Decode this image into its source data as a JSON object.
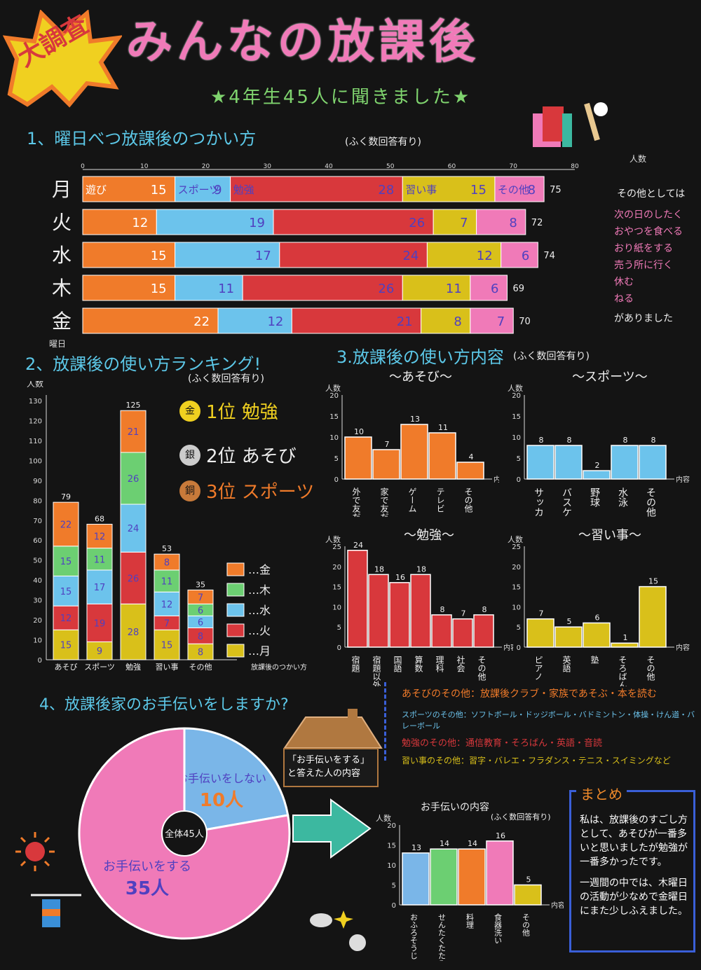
{
  "header": {
    "badge": "大調査",
    "title": "みんなの放課後",
    "subtitle": "★4年生45人に聞きました★"
  },
  "section1": {
    "title": "1、曜日べつ放課後のつかい方",
    "note": "(ふく数回答有り)",
    "unit": "人数",
    "axis_label": "曜日",
    "other_notes_title": "その他としては",
    "other_notes": [
      "次の日のしたく",
      "おやつを食べる",
      "おり紙をする",
      "売う所に行く",
      "休む",
      "ねる"
    ],
    "other_notes_end": "がありました"
  },
  "section2": {
    "title": "2、放課後の使い方ランキング!",
    "note": "(ふく数回答有り)",
    "ranks": [
      "1位 勉強",
      "2位 あそび",
      "3位 スポーツ"
    ],
    "medals": [
      "金",
      "銀",
      "銅"
    ]
  },
  "section3": {
    "title": "3.放課後の使い方内容",
    "note": "(ふく数回答有り)"
  },
  "section4": {
    "title": "4、放課後家のお手伝いをしますか?",
    "house_caption": "「お手伝いをする」と答えた人の内容",
    "center": "全体45人"
  },
  "others_box": {
    "asobi": "あそびのその他：放課後クラブ・家族であそぶ・本を読む",
    "sports": "スポーツのその他：ソフトボール・ドッジボール・バドミントン・体操・けん道・バレーボール",
    "benkyo": "勉強のその他：通信教育・そろばん・英語・音読",
    "naraigoto": "習い事のその他：習字・バレエ・フラダンス・テニス・スイミングなど"
  },
  "summary": {
    "title": "まとめ",
    "text1": "私は、放課後のすごし方として、あそびが一番多いと思いましたが勉強が一番多かったです。",
    "text2": "一週間の中では、木曜日の活動が少なめで金曜日にまた少しふえました。"
  },
  "colors": {
    "asobi": "#f07b2a",
    "sports": "#6cc3ec",
    "benkyo": "#d8383c",
    "naraigoto": "#d9c01a",
    "sonota": "#f07ab8",
    "green": "#6ccf72",
    "pink": "#f07ab8",
    "blue": "#7ab6e8",
    "teal": "#3cb8a0"
  },
  "chart_data": [
    {
      "type": "bar",
      "orientation": "horizontal-stacked",
      "title": "曜日べつ放課後のつかい方",
      "ylabel": "人数",
      "categories": [
        "月",
        "火",
        "水",
        "木",
        "金"
      ],
      "xlim": [
        0,
        80
      ],
      "xticks": [
        0,
        10,
        20,
        30,
        40,
        50,
        60,
        70,
        80
      ],
      "series": [
        {
          "name": "遊び",
          "values": [
            15,
            12,
            15,
            15,
            22
          ]
        },
        {
          "name": "スポーツ",
          "values": [
            9,
            19,
            17,
            11,
            12
          ]
        },
        {
          "name": "勉強",
          "values": [
            28,
            26,
            24,
            26,
            21
          ]
        },
        {
          "name": "習い事",
          "values": [
            15,
            7,
            12,
            11,
            8
          ]
        },
        {
          "name": "その他",
          "values": [
            8,
            8,
            6,
            6,
            7
          ]
        }
      ],
      "totals": [
        75,
        72,
        74,
        69,
        70
      ]
    },
    {
      "type": "bar",
      "orientation": "vertical-stacked",
      "title": "放課後の使い方ランキング",
      "ylabel": "人数",
      "xlabel": "放課後のつかい方",
      "categories": [
        "あそび",
        "スポーツ",
        "勉強",
        "習い事",
        "その他"
      ],
      "ylim": [
        0,
        130
      ],
      "yticks": [
        10,
        20,
        30,
        40,
        50,
        60,
        70,
        80,
        90,
        100,
        110,
        120,
        130
      ],
      "series": [
        {
          "name": "月",
          "values": [
            15,
            9,
            28,
            15,
            8
          ]
        },
        {
          "name": "火",
          "values": [
            12,
            19,
            26,
            7,
            8
          ]
        },
        {
          "name": "水",
          "values": [
            15,
            17,
            24,
            12,
            6
          ]
        },
        {
          "name": "木",
          "values": [
            15,
            11,
            26,
            11,
            6
          ]
        },
        {
          "name": "金",
          "values": [
            22,
            12,
            21,
            8,
            7
          ]
        }
      ],
      "totals": [
        79,
        68,
        125,
        53,
        35
      ],
      "legend_labels": [
        "…金",
        "…木",
        "…水",
        "…火",
        "…月"
      ]
    },
    {
      "type": "bar",
      "title": "～あそび～",
      "ylabel": "人数",
      "xlabel": "内容",
      "categories": [
        "外で友だちとあそぶ",
        "家で友だちとあそぶ",
        "ゲーム",
        "テレビ",
        "その他"
      ],
      "values": [
        10,
        7,
        13,
        11,
        4
      ],
      "ylim": [
        0,
        20
      ],
      "yticks": [
        0,
        5,
        10,
        15,
        20
      ]
    },
    {
      "type": "bar",
      "title": "～スポーツ～",
      "ylabel": "人数",
      "xlabel": "内容",
      "categories": [
        "サッカー",
        "バスケ",
        "野球",
        "水泳",
        "その他"
      ],
      "values": [
        8,
        8,
        2,
        8,
        8
      ],
      "ylim": [
        0,
        20
      ],
      "yticks": [
        0,
        5,
        10,
        15,
        20
      ]
    },
    {
      "type": "bar",
      "title": "～勉強～",
      "ylabel": "人数",
      "xlabel": "内容",
      "categories": [
        "宿題",
        "宿題以外",
        "国語",
        "算数",
        "理科",
        "社会",
        "その他"
      ],
      "values": [
        24,
        18,
        16,
        18,
        8,
        7,
        8
      ],
      "ylim": [
        0,
        25
      ],
      "yticks": [
        0,
        5,
        10,
        15,
        20,
        25
      ]
    },
    {
      "type": "bar",
      "title": "～習い事～",
      "ylabel": "人数",
      "xlabel": "内容",
      "categories": [
        "ピアノ",
        "英語",
        "塾",
        "そろばん",
        "その他"
      ],
      "values": [
        7,
        5,
        6,
        1,
        15
      ],
      "ylim": [
        0,
        25
      ],
      "yticks": [
        0,
        5,
        10,
        15,
        20,
        25
      ]
    },
    {
      "type": "pie",
      "title": "放課後家のお手伝いをしますか?",
      "categories": [
        "お手伝いをしない",
        "お手伝いをする"
      ],
      "labels": [
        "お手伝いをしない",
        "お手伝いをする"
      ],
      "values": [
        10,
        35
      ],
      "value_labels": [
        "10人",
        "35人"
      ]
    },
    {
      "type": "bar",
      "title": "お手伝いの内容",
      "note": "(ふく数回答有り)",
      "ylabel": "人数",
      "xlabel": "内容",
      "categories": [
        "おふろそうじ",
        "せんたくたたみ",
        "料理",
        "食器洗い",
        "その他"
      ],
      "values": [
        13,
        14,
        14,
        16,
        5
      ],
      "ylim": [
        0,
        20
      ],
      "yticks": [
        0,
        5,
        10,
        15,
        20
      ]
    }
  ]
}
